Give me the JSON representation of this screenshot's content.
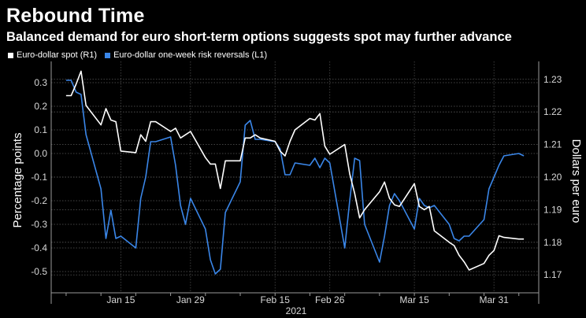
{
  "title": "Rebound Time",
  "subtitle": "Balanced demand for euro short-term options suggests spot may further advance",
  "colors": {
    "spot": "#ffffff",
    "risk_reversals": "#3a86e8",
    "background": "#000000"
  },
  "chart_data": {
    "type": "line",
    "title": "Rebound Time",
    "subtitle": "Balanced demand for euro short-term options suggests spot may further advance",
    "xlabel": "2021",
    "ylabel_left": "Percentage points",
    "ylabel_right": "Dollars per euro",
    "x_ticks": [
      "Jan 15",
      "Jan 29",
      "Feb 15",
      "Feb 26",
      "Mar 15",
      "Mar 31"
    ],
    "y_left_ticks": [
      "0.3",
      "0.2",
      "0.1",
      "0.0",
      "-0.1",
      "-0.2",
      "-0.3",
      "-0.4",
      "-0.5"
    ],
    "y_right_ticks": [
      "1.23",
      "1.22",
      "1.21",
      "1.20",
      "1.19",
      "1.18",
      "1.17"
    ],
    "ylim_left": [
      -0.59,
      0.39
    ],
    "ylim_right": [
      1.1645,
      1.2355
    ],
    "grid": true,
    "legend_position": "top-left",
    "x": [
      "2021-01-04",
      "2021-01-05",
      "2021-01-06",
      "2021-01-07",
      "2021-01-08",
      "2021-01-11",
      "2021-01-12",
      "2021-01-13",
      "2021-01-14",
      "2021-01-15",
      "2021-01-18",
      "2021-01-19",
      "2021-01-20",
      "2021-01-21",
      "2021-01-22",
      "2021-01-25",
      "2021-01-26",
      "2021-01-27",
      "2021-01-28",
      "2021-01-29",
      "2021-02-01",
      "2021-02-02",
      "2021-02-03",
      "2021-02-04",
      "2021-02-05",
      "2021-02-08",
      "2021-02-09",
      "2021-02-10",
      "2021-02-11",
      "2021-02-12",
      "2021-02-15",
      "2021-02-16",
      "2021-02-17",
      "2021-02-18",
      "2021-02-19",
      "2021-02-22",
      "2021-02-23",
      "2021-02-24",
      "2021-02-25",
      "2021-02-26",
      "2021-03-01",
      "2021-03-02",
      "2021-03-03",
      "2021-03-04",
      "2021-03-05",
      "2021-03-08",
      "2021-03-09",
      "2021-03-10",
      "2021-03-11",
      "2021-03-12",
      "2021-03-15",
      "2021-03-16",
      "2021-03-17",
      "2021-03-18",
      "2021-03-19",
      "2021-03-22",
      "2021-03-23",
      "2021-03-24",
      "2021-03-25",
      "2021-03-26",
      "2021-03-29",
      "2021-03-30",
      "2021-03-31",
      "2021-04-01",
      "2021-04-02",
      "2021-04-05",
      "2021-04-06"
    ],
    "series": [
      {
        "name": "Euro-dollar spot (R1)",
        "axis": "right",
        "values": [
          1.225,
          1.225,
          1.2285,
          1.2325,
          1.222,
          1.216,
          1.221,
          1.2175,
          1.217,
          1.208,
          1.2075,
          1.213,
          1.211,
          1.217,
          1.217,
          1.214,
          1.215,
          1.212,
          1.213,
          1.214,
          1.206,
          1.204,
          1.204,
          1.1965,
          1.205,
          1.205,
          1.212,
          1.212,
          1.213,
          1.212,
          1.211,
          1.208,
          1.2065,
          1.211,
          1.2145,
          1.218,
          1.2175,
          1.2195,
          1.2095,
          1.207,
          1.21,
          1.201,
          1.195,
          1.1875,
          1.19,
          1.1955,
          1.1985,
          1.1935,
          1.1915,
          1.191,
          1.198,
          1.191,
          1.19,
          1.191,
          1.1835,
          1.18,
          1.179,
          1.176,
          1.174,
          1.1715,
          1.1735,
          1.176,
          1.1775,
          1.182,
          1.1815,
          1.181,
          1.181
        ]
      },
      {
        "name": "Euro-dollar one-week risk reversals (L1)",
        "axis": "left",
        "values": [
          0.31,
          0.31,
          0.26,
          0.25,
          0.08,
          -0.15,
          -0.36,
          -0.24,
          -0.36,
          -0.35,
          -0.4,
          -0.19,
          -0.1,
          0.05,
          0.05,
          0.07,
          -0.05,
          -0.22,
          -0.3,
          -0.19,
          -0.32,
          -0.45,
          -0.51,
          -0.49,
          -0.25,
          -0.12,
          0.12,
          0.14,
          0.06,
          0.06,
          0.05,
          0.02,
          -0.09,
          -0.09,
          -0.04,
          -0.05,
          -0.02,
          -0.06,
          -0.02,
          -0.04,
          -0.4,
          -0.2,
          -0.02,
          -0.03,
          -0.3,
          -0.46,
          -0.35,
          -0.22,
          -0.17,
          -0.2,
          -0.32,
          -0.19,
          -0.22,
          -0.23,
          -0.22,
          -0.3,
          -0.36,
          -0.37,
          -0.35,
          -0.35,
          -0.28,
          -0.15,
          -0.1,
          -0.05,
          -0.01,
          0.0,
          -0.01
        ]
      }
    ]
  }
}
